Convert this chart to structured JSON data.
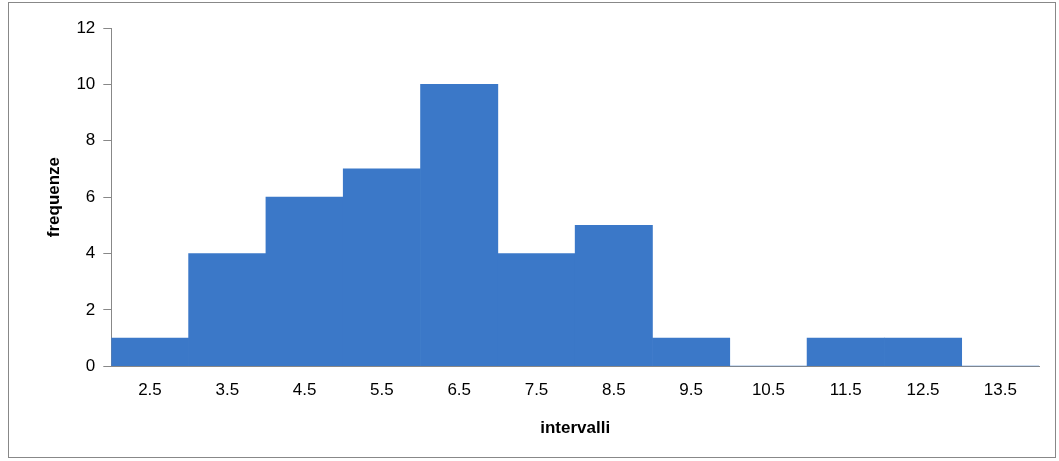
{
  "chart_data": {
    "type": "bar",
    "xlabel": "intervalli",
    "ylabel": "frequenze",
    "categories": [
      "2.5",
      "3.5",
      "4.5",
      "5.5",
      "6.5",
      "7.5",
      "8.5",
      "9.5",
      "10.5",
      "11.5",
      "12.5",
      "13.5"
    ],
    "values": [
      1,
      4,
      6,
      7,
      10,
      4,
      5,
      1,
      0,
      1,
      1,
      0
    ],
    "color": "#3b78c8",
    "ylim": [
      0,
      12
    ],
    "yticks": [
      0,
      2,
      4,
      6,
      8,
      10,
      12
    ],
    "grid": false,
    "legend": false
  }
}
